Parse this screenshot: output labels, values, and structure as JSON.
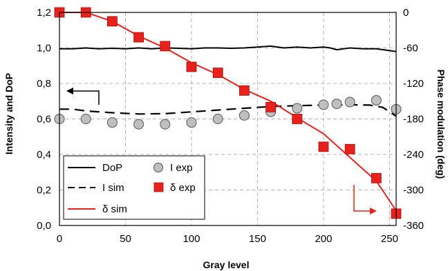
{
  "chart_data": {
    "type": "line",
    "xlabel": "Gray level",
    "ylabel_left": "Intensity and DoP",
    "ylabel_right": "Phase modulation (deg)",
    "xlim": [
      0,
      255
    ],
    "ylim_left": [
      0,
      1.2
    ],
    "ylim_right": [
      -360,
      0
    ],
    "xticks": [
      "0",
      "50",
      "100",
      "150",
      "200",
      "250"
    ],
    "yticks_left": [
      "0,0",
      "0,2",
      "0,4",
      "0,6",
      "0,8",
      "1,0",
      "1,2"
    ],
    "yticks_right": [
      "0",
      "-60",
      "-120",
      "-180",
      "-240",
      "-300",
      "-360"
    ],
    "grid": true,
    "legend_position": "bottom-left",
    "legend": {
      "dop": "DoP",
      "i_exp": "I exp",
      "i_sim": "I sim",
      "delta_exp": "δ exp",
      "delta_sim": "δ sim"
    },
    "colors": {
      "black": "#000000",
      "red": "#e8211c",
      "grey_marker": "#bfbfbf",
      "grid": "#b3b3b3"
    },
    "series": [
      {
        "name": "DoP",
        "axis": "left",
        "style": "solid-black",
        "x": [
          0,
          10,
          20,
          30,
          40,
          50,
          60,
          70,
          80,
          90,
          100,
          110,
          120,
          130,
          140,
          150,
          160,
          170,
          180,
          190,
          200,
          205,
          210,
          220,
          230,
          240,
          250,
          255
        ],
        "y": [
          0.995,
          0.995,
          1.0,
          0.995,
          0.998,
          0.995,
          1.0,
          0.995,
          1.0,
          0.998,
          0.995,
          1.0,
          1.0,
          0.998,
          1.0,
          1.005,
          1.01,
          1.0,
          1.005,
          1.0,
          1.005,
          1.0,
          0.99,
          1.0,
          0.995,
          0.995,
          0.985,
          0.98
        ]
      },
      {
        "name": "I sim",
        "axis": "left",
        "style": "dashed-black",
        "x": [
          0,
          10,
          20,
          40,
          60,
          80,
          100,
          120,
          140,
          160,
          180,
          200,
          220,
          235,
          245,
          250,
          255
        ],
        "y": [
          0.655,
          0.655,
          0.645,
          0.635,
          0.628,
          0.63,
          0.64,
          0.65,
          0.66,
          0.67,
          0.675,
          0.678,
          0.68,
          0.678,
          0.665,
          0.64,
          0.615
        ]
      },
      {
        "name": "I exp",
        "axis": "left",
        "style": "grey-circles",
        "x": [
          0,
          20,
          40,
          60,
          80,
          100,
          120,
          140,
          160,
          180,
          200,
          210,
          220,
          240,
          255
        ],
        "y": [
          0.6,
          0.6,
          0.58,
          0.57,
          0.57,
          0.58,
          0.6,
          0.62,
          0.64,
          0.66,
          0.68,
          0.685,
          0.695,
          0.705,
          0.655
        ]
      },
      {
        "name": "δ sim",
        "axis": "right",
        "style": "solid-red",
        "x": [
          0,
          20,
          40,
          60,
          80,
          100,
          120,
          140,
          160,
          180,
          200,
          220,
          240,
          255
        ],
        "y": [
          0,
          0,
          -15,
          -40,
          -60,
          -85,
          -105,
          -130,
          -150,
          -178,
          -205,
          -245,
          -285,
          -335
        ]
      },
      {
        "name": "δ exp",
        "axis": "right",
        "style": "red-squares",
        "x": [
          0,
          20,
          40,
          60,
          80,
          100,
          120,
          140,
          160,
          180,
          200,
          220,
          240,
          255
        ],
        "y": [
          0,
          0,
          -15,
          -42,
          -57,
          -92,
          -102,
          -132,
          -160,
          -180,
          -227,
          -231,
          -280,
          -340
        ]
      }
    ]
  }
}
